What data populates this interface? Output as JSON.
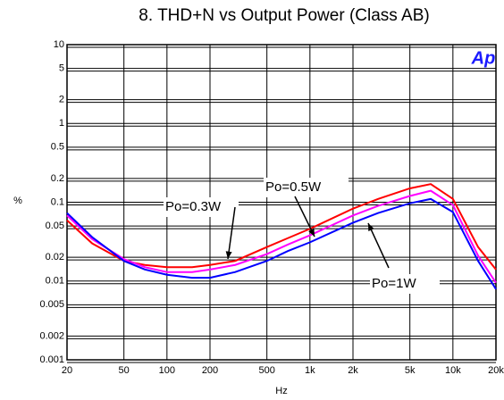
{
  "chart_data": {
    "type": "line",
    "title": "8. THD+N vs Output Power (Class AB)",
    "x_label": "Hz",
    "y_label": "%",
    "logo": "Ap",
    "x": [
      20,
      30,
      50,
      70,
      100,
      150,
      200,
      300,
      500,
      700,
      1000,
      2000,
      3000,
      5000,
      7000,
      10000,
      15000,
      20000
    ],
    "series": [
      {
        "name": "Po=0.3W",
        "color": "#ff0000",
        "values": [
          0.059,
          0.03,
          0.018,
          0.016,
          0.015,
          0.015,
          0.016,
          0.018,
          0.027,
          0.035,
          0.046,
          0.083,
          0.11,
          0.15,
          0.17,
          0.11,
          0.027,
          0.014
        ]
      },
      {
        "name": "Po=0.5W",
        "color": "#ff00ff",
        "values": [
          0.068,
          0.034,
          0.019,
          0.015,
          0.013,
          0.013,
          0.014,
          0.016,
          0.022,
          0.029,
          0.038,
          0.068,
          0.09,
          0.12,
          0.14,
          0.092,
          0.021,
          0.0095
        ]
      },
      {
        "name": "Po=1W",
        "color": "#0000ff",
        "values": [
          0.073,
          0.036,
          0.018,
          0.014,
          0.012,
          0.011,
          0.011,
          0.013,
          0.018,
          0.024,
          0.031,
          0.055,
          0.073,
          0.097,
          0.11,
          0.075,
          0.018,
          0.0079
        ]
      }
    ],
    "xlim": [
      20,
      20000
    ],
    "ylim": [
      0.001,
      10
    ],
    "log_x": true,
    "log_y": true,
    "grid": true,
    "xticks": [
      20,
      50,
      100,
      200,
      500,
      {
        "value": 1000,
        "label": "1k"
      },
      {
        "value": 2000,
        "label": "2k"
      },
      {
        "value": 5000,
        "label": "5k"
      },
      {
        "value": 10000,
        "label": "10k"
      },
      {
        "value": 20000,
        "label": "20k"
      }
    ],
    "yticks": [
      10,
      5,
      2,
      1,
      0.5,
      0.2,
      0.1,
      0.05,
      0.02,
      0.01,
      0.005,
      0.002,
      0.001
    ]
  }
}
